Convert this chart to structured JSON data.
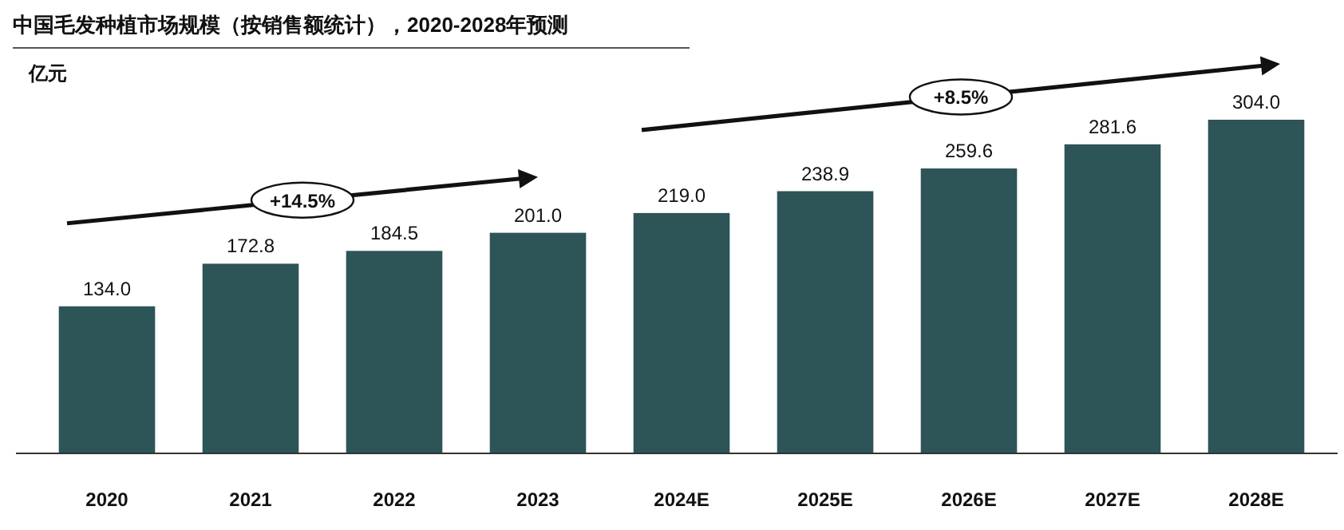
{
  "chart_data": {
    "type": "bar",
    "title": "中国毛发种植市场规模（按销售额统计），2020-2028年预测",
    "ylabel": "亿元",
    "categories": [
      "2020",
      "2021",
      "2022",
      "2023",
      "2024E",
      "2025E",
      "2026E",
      "2027E",
      "2028E"
    ],
    "values": [
      134.0,
      172.8,
      184.5,
      201.0,
      219.0,
      238.9,
      259.6,
      281.6,
      304.0
    ],
    "color": "#2d5456",
    "value_labels": [
      "134.0",
      "172.8",
      "184.5",
      "201.0",
      "219.0",
      "238.9",
      "259.6",
      "281.6",
      "304.0"
    ],
    "annotations": [
      "+14.5%",
      "+8.5%"
    ]
  }
}
